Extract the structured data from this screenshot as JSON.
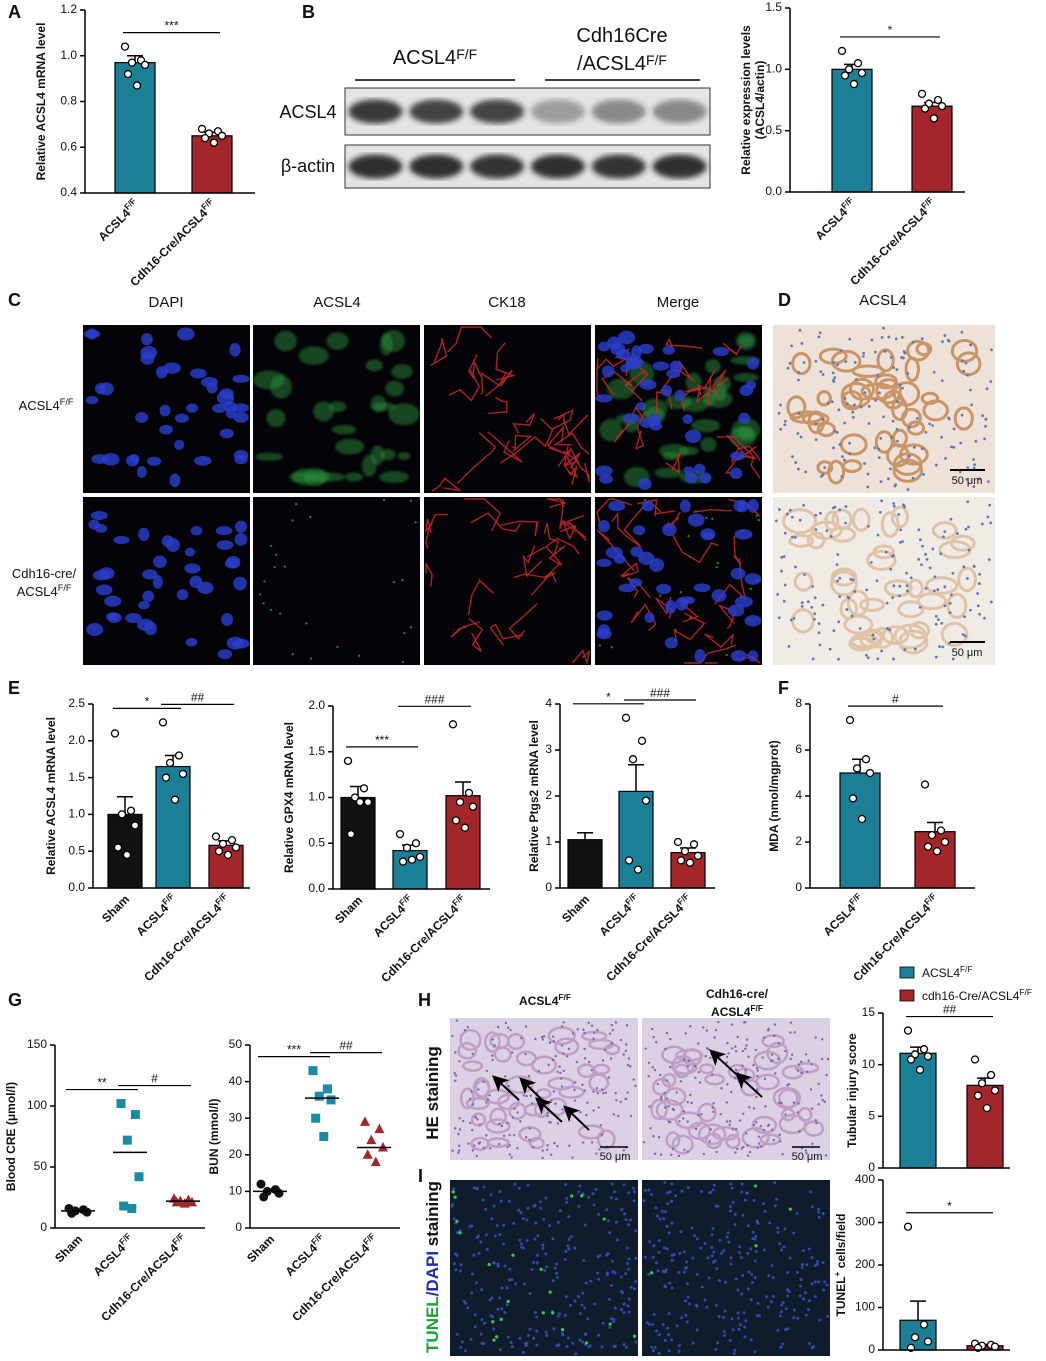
{
  "chart_data": [
    {
      "type": "bar",
      "ylabel": "Relative ACSL4 mRNA level",
      "categories": [
        [
          "ACSL4",
          "F/F"
        ],
        [
          "Cdh16-Cre/ACSL4",
          "F/F"
        ]
      ],
      "colors": [
        "#1b7f95",
        "#a3262a"
      ],
      "values": [
        0.97,
        0.65
      ],
      "errors": [
        0.03,
        0.015
      ],
      "points": [
        [
          1.04,
          0.98,
          0.97,
          0.96,
          0.92,
          0.87
        ],
        [
          0.68,
          0.67,
          0.66,
          0.65,
          0.64,
          0.62
        ]
      ],
      "ylim": [
        0.4,
        1.2
      ],
      "yticks": [
        0.4,
        0.6,
        0.8,
        {
          "value": 1,
          "label": "1.0"
        },
        1.2
      ],
      "significance": [
        "***"
      ]
    },
    {
      "type": "bar",
      "ylabel_lines": [
        "Relative expression levels",
        "(ACSL4/actin)"
      ],
      "categories": [
        [
          "ACSL4",
          "F/F"
        ],
        [
          "Cdh16-Cre/ACSL4",
          "F/F"
        ]
      ],
      "colors": [
        "#1b7f95",
        "#a3262a"
      ],
      "values": [
        1.0,
        0.7
      ],
      "errors": [
        0.04,
        0.03
      ],
      "points": [
        [
          1.15,
          1.05,
          1.0,
          0.97,
          0.95,
          0.88
        ],
        [
          0.8,
          0.75,
          0.72,
          0.7,
          0.68,
          0.6
        ]
      ],
      "ylim": [
        0,
        1.5
      ],
      "yticks": [
        {
          "value": 0,
          "label": "0.0"
        },
        0.5,
        {
          "value": 1,
          "label": "1.0"
        },
        1.5
      ],
      "significance": [
        "*"
      ]
    },
    {
      "type": "bar",
      "ylabel": "Relative ACSL4 mRNA level",
      "categories": [
        "Sham",
        [
          "ACSL4",
          "F/F"
        ],
        [
          "Cdh16-Cre/ACSL4",
          "F/F"
        ]
      ],
      "colors": [
        "#111111",
        "#1b7f95",
        "#a3262a"
      ],
      "values": [
        1.0,
        1.65,
        0.58
      ],
      "errors": [
        0.24,
        0.15,
        0.06
      ],
      "points": [
        [
          2.1,
          1.05,
          1.0,
          0.85,
          0.55,
          0.45
        ],
        [
          2.25,
          1.8,
          1.7,
          1.55,
          1.5,
          1.2
        ],
        [
          0.7,
          0.65,
          0.6,
          0.55,
          0.5,
          0.45
        ]
      ],
      "ylim": [
        0,
        2.5
      ],
      "yticks": [
        {
          "value": 0,
          "label": "0.0"
        },
        0.5,
        {
          "value": 1,
          "label": "1.0"
        },
        1.5,
        {
          "value": 2,
          "label": "2.0"
        },
        2.5
      ],
      "significance": [
        "*",
        "##"
      ]
    },
    {
      "type": "bar",
      "ylabel": "Relative GPX4 mRNA level",
      "categories": [
        "Sham",
        [
          "ACSL4",
          "F/F"
        ],
        [
          "Cdh16-Cre/ACSL4",
          "F/F"
        ]
      ],
      "colors": [
        "#111111",
        "#1b7f95",
        "#a3262a"
      ],
      "values": [
        1.0,
        0.42,
        1.02
      ],
      "errors": [
        0.12,
        0.06,
        0.15
      ],
      "points": [
        [
          1.4,
          1.1,
          1.0,
          0.95,
          0.6,
          0.95
        ],
        [
          0.6,
          0.5,
          0.45,
          0.35,
          0.3,
          0.32
        ],
        [
          1.8,
          1.05,
          0.95,
          0.9,
          0.75,
          0.67
        ]
      ],
      "ylim": [
        0,
        2
      ],
      "yticks": [
        {
          "value": 0,
          "label": "0.0"
        },
        0.5,
        {
          "value": 1,
          "label": "1.0"
        },
        1.5,
        {
          "value": 2,
          "label": "2.0"
        }
      ],
      "significance": [
        "***",
        "###"
      ]
    },
    {
      "type": "bar",
      "ylabel": "Relative Ptgs2 mRNA level",
      "categories": [
        "Sham",
        [
          "ACSL4",
          "F/F"
        ],
        [
          "Cdh16-Cre/ACSL4",
          "F/F"
        ]
      ],
      "colors": [
        "#111111",
        "#1b7f95",
        "#a3262a"
      ],
      "values": [
        1.05,
        2.1,
        0.77
      ],
      "errors": [
        0.15,
        0.58,
        0.1
      ],
      "points": [
        [],
        [
          3.7,
          3.2,
          2.8,
          1.9,
          0.6,
          0.4
        ],
        [
          1.0,
          0.95,
          0.8,
          0.7,
          0.6,
          0.55
        ]
      ],
      "ylim": [
        0,
        4
      ],
      "yticks": [
        0,
        1,
        2,
        3,
        4
      ],
      "significance": [
        "*",
        "###"
      ]
    },
    {
      "type": "bar",
      "ylabel": "MDA (nmol/mgprot)",
      "categories": [
        [
          "ACSL4",
          "F/F"
        ],
        [
          "Cdh16-Cre/ACSL4",
          "F/F"
        ]
      ],
      "colors": [
        "#1b7f95",
        "#a3262a"
      ],
      "values": [
        5.0,
        2.45
      ],
      "errors": [
        0.6,
        0.4
      ],
      "points": [
        [
          7.3,
          5.6,
          5.2,
          5.0,
          3.9,
          3.0
        ],
        [
          4.5,
          2.5,
          2.3,
          2.0,
          1.8,
          1.6
        ]
      ],
      "ylim": [
        0,
        8
      ],
      "yticks": [
        0,
        2,
        4,
        6,
        8
      ],
      "significance": [
        "#"
      ]
    },
    {
      "type": "dot",
      "ylabel": "Blood CRE (μmol/l)",
      "categories": [
        "Sham",
        [
          "ACSL4",
          "F/F"
        ],
        [
          "Cdh16-Cre/ACSL4",
          "F/F"
        ]
      ],
      "colors": [
        "#111111",
        "#1b8aa5",
        "#a3262a"
      ],
      "markers": [
        "circle",
        "square",
        "triangle"
      ],
      "values": [
        14,
        62,
        22
      ],
      "points": [
        [
          16,
          15,
          14,
          13,
          12
        ],
        [
          102,
          93,
          72,
          42,
          18,
          16
        ],
        [
          24,
          23,
          22,
          21,
          21,
          20
        ]
      ],
      "ylim": [
        0,
        150
      ],
      "yticks": [
        0,
        50,
        100,
        150
      ],
      "significance": [
        "**",
        "#"
      ]
    },
    {
      "type": "dot",
      "ylabel": "BUN (mmol/l)",
      "categories": [
        "Sham",
        [
          "ACSL4",
          "F/F"
        ],
        [
          "Cdh16-Cre/ACSL4",
          "F/F"
        ]
      ],
      "colors": [
        "#111111",
        "#1b8aa5",
        "#a3262a"
      ],
      "markers": [
        "circle",
        "square",
        "triangle"
      ],
      "values": [
        10,
        35.5,
        22
      ],
      "points": [
        [
          12,
          10.5,
          10,
          9.5,
          8.5
        ],
        [
          43,
          38,
          36,
          35,
          30,
          25
        ],
        [
          29,
          27,
          24,
          22,
          20,
          18
        ]
      ],
      "ylim": [
        0,
        50
      ],
      "yticks": [
        0,
        10,
        20,
        30,
        40,
        50
      ],
      "significance": [
        "***",
        "##"
      ]
    },
    {
      "type": "bar",
      "ylabel": "Tubular injury score",
      "categories": [
        null,
        null
      ],
      "legend": [
        [
          "ACSL4",
          "F/F"
        ],
        [
          "cdh16-Cre/ACSL4",
          "F/F"
        ]
      ],
      "colors": [
        "#1b7f95",
        "#a3262a"
      ],
      "values": [
        11.1,
        8.0
      ],
      "errors": [
        0.6,
        0.7
      ],
      "points": [
        [
          13.3,
          11.5,
          11,
          10.8,
          10.5,
          9.5
        ],
        [
          10.5,
          9.0,
          8.2,
          7.5,
          7.0,
          5.8
        ]
      ],
      "ylim": [
        0,
        15
      ],
      "yticks": [
        0,
        5,
        10,
        15
      ],
      "significance": [
        "##"
      ]
    },
    {
      "type": "bar",
      "ylabel": [
        "TUNEL",
        "+",
        " cells/field"
      ],
      "categories": [
        null,
        null
      ],
      "colors": [
        "#1b7f95",
        "#a3262a"
      ],
      "values": [
        70,
        10
      ],
      "errors": [
        45,
        3
      ],
      "points": [
        [
          290,
          60,
          30,
          20,
          5
        ],
        [
          15,
          12,
          10,
          8,
          5
        ]
      ],
      "ylim": [
        0,
        400
      ],
      "yticks": [
        0,
        100,
        200,
        300,
        400
      ],
      "significance": [
        "*"
      ]
    }
  ],
  "figure": {
    "panel_labels": [
      "A",
      "B",
      "C",
      "D",
      "E",
      "F",
      "G",
      "H",
      "I"
    ],
    "blot": {
      "group1": [
        "ACSL4",
        "F/F"
      ],
      "group2_line1": "Cdh16Cre",
      "group2_line2": [
        "/ACSL4",
        "F/F"
      ],
      "rows": [
        "ACSL4",
        "β-actin"
      ]
    },
    "if_panel": {
      "columns": [
        "DAPI",
        "ACSL4",
        "CK18",
        "Merge"
      ],
      "row1": [
        "ACSL4",
        "F/F"
      ],
      "row2_line1": "Cdh16-cre/",
      "row2_line2": [
        "ACSL4",
        "F/F"
      ]
    },
    "ihc_panel": {
      "title": "ACSL4",
      "scale_bars": [
        "50 μm",
        "50 μm"
      ]
    },
    "histology": {
      "col1": [
        "ACSL4",
        "F/F"
      ],
      "col2_line1": "Cdh16-cre/",
      "col2_line2": [
        "ACSL4",
        "F/F"
      ],
      "he_label": "HE staining",
      "tunel_label": [
        "TUNEL",
        "/DAPI",
        " staining"
      ],
      "scale_bars": [
        "50 μm",
        "50 μm"
      ]
    }
  }
}
